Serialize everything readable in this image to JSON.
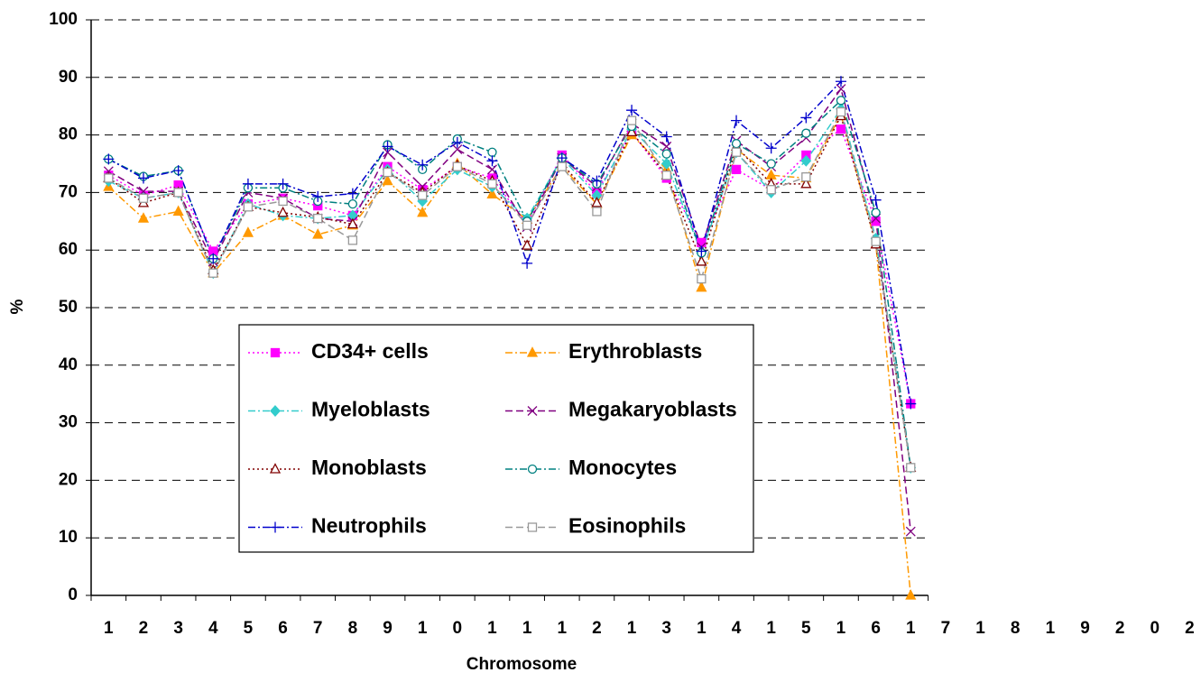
{
  "chart_data": {
    "type": "line",
    "x_label": "Chromosome",
    "y_label": "%",
    "categories": [
      "1",
      "2",
      "3",
      "4",
      "5",
      "6",
      "7",
      "8",
      "9",
      "1",
      "0",
      "1",
      "1",
      "1",
      "2",
      "1",
      "3",
      "1",
      "4",
      "1",
      "5",
      "1",
      "6",
      "1",
      "7",
      "1",
      "8",
      "1",
      "9",
      "2",
      "0",
      "2"
    ],
    "ylim": [
      0,
      100
    ],
    "yticks": [
      0,
      10,
      20,
      30,
      40,
      50,
      60,
      70,
      80,
      90,
      100
    ],
    "grid": true,
    "series": [
      {
        "name": "CD34+ cells",
        "color": "#ff00ff",
        "values": [
          73,
          69.5,
          71.3,
          59.8,
          68,
          69,
          67.7,
          66,
          74.5,
          70.5,
          74.5,
          72.5,
          64.5,
          76.5,
          70,
          80.5,
          72.5,
          61.3,
          74,
          70.5,
          76.5,
          81,
          65,
          33.3,
          null,
          null,
          null,
          null,
          null,
          null,
          null,
          null
        ]
      },
      {
        "name": "Erythroblasts",
        "color": "#ff9900",
        "values": [
          71,
          65.5,
          66.7,
          56,
          63,
          66,
          62.7,
          64.3,
          72,
          66.5,
          75,
          69.7,
          65.3,
          74.5,
          68,
          80,
          74,
          53.5,
          77.5,
          73,
          72.5,
          83.5,
          61,
          0,
          null,
          null,
          null,
          null,
          null,
          null,
          null,
          null
        ]
      },
      {
        "name": "Myeloblasts",
        "color": "#33cccc",
        "values": [
          72,
          69,
          70,
          56,
          68,
          66,
          65.5,
          66,
          74,
          68.5,
          74,
          71,
          65.5,
          76,
          69.5,
          81,
          75,
          59.5,
          77,
          70,
          75.5,
          84.5,
          62,
          22.2,
          null,
          null,
          null,
          null,
          null,
          null,
          null,
          null
        ]
      },
      {
        "name": "Megakaryoblasts",
        "color": "#800080",
        "values": [
          73.7,
          70.2,
          70.2,
          58,
          70,
          69,
          65.5,
          65,
          77,
          71,
          77.5,
          74,
          64,
          76,
          71,
          82,
          78,
          60.5,
          79,
          74.5,
          79.5,
          88,
          65.5,
          11.1,
          null,
          null,
          null,
          null,
          null,
          null,
          null,
          null
        ]
      },
      {
        "name": "Monoblasts",
        "color": "#800000",
        "values": [
          72.5,
          68.2,
          70,
          56.5,
          67.5,
          66.5,
          65.7,
          64.5,
          73.5,
          70,
          74.7,
          72,
          60.8,
          75,
          68.2,
          80.5,
          73,
          58,
          78,
          71.5,
          71.5,
          83.3,
          61,
          22.2,
          null,
          null,
          null,
          null,
          null,
          null,
          null,
          null
        ]
      },
      {
        "name": "Monocytes",
        "color": "#008080",
        "values": [
          75.8,
          72.8,
          73.8,
          58.5,
          70.8,
          70.8,
          68.5,
          68,
          78.3,
          74,
          79.3,
          77,
          65,
          76,
          71.5,
          81.5,
          76.7,
          59.5,
          78.5,
          75,
          80.3,
          86,
          66.5,
          22.2,
          null,
          null,
          null,
          null,
          null,
          null,
          null,
          null
        ]
      },
      {
        "name": "Neutrophils",
        "color": "#0000cc",
        "values": [
          75.8,
          72.5,
          73.8,
          58.5,
          71.5,
          71.5,
          69.3,
          69.8,
          78,
          74.8,
          78.7,
          75.5,
          57.7,
          76,
          72,
          84.3,
          79.7,
          59.8,
          82.5,
          77.7,
          83,
          89.3,
          68.7,
          33.3,
          null,
          null,
          null,
          null,
          null,
          null,
          null,
          null
        ]
      },
      {
        "name": "Eosinophils",
        "color": "#999999",
        "values": [
          72.5,
          69,
          70,
          56,
          67.5,
          68.5,
          65.5,
          61.7,
          73.5,
          69.5,
          74.5,
          71.5,
          64.3,
          74.5,
          66.7,
          82.5,
          73,
          55,
          77,
          70.5,
          72.7,
          84,
          61.5,
          22.2,
          null,
          null,
          null,
          null,
          null,
          null,
          null,
          null
        ]
      }
    ]
  }
}
